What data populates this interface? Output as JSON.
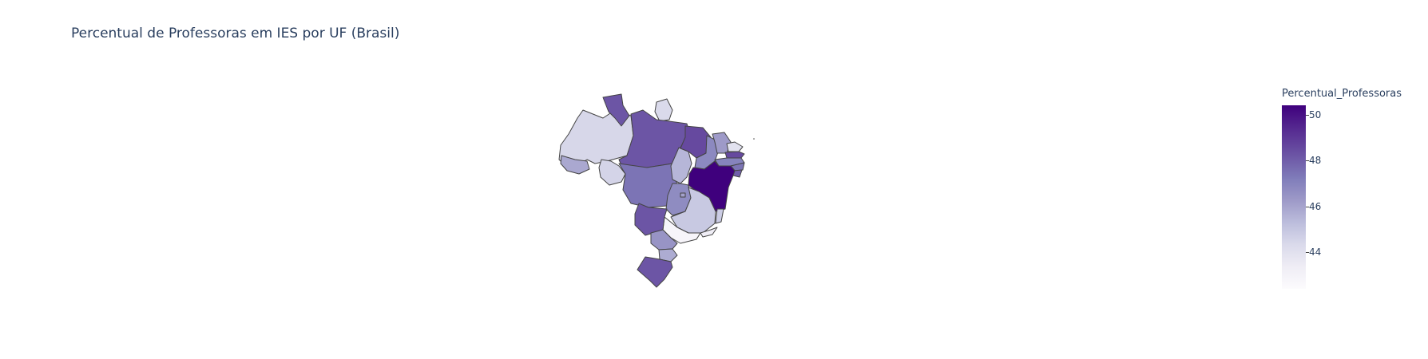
{
  "title": "Percentual de Professoras em IES por UF (Brasil)",
  "colorbar": {
    "title": "Percentual_Professoras",
    "ticks": [
      "50",
      "48",
      "46",
      "44"
    ],
    "tick_values": [
      50,
      48,
      46,
      44
    ],
    "min": 42.4,
    "max": 50.4,
    "colorscale": [
      "#fcfbfd",
      "#efedf5",
      "#dadaeb",
      "#bcbddc",
      "#9e9ac8",
      "#807dba",
      "#6a51a3",
      "#54278f",
      "#3f007d"
    ]
  },
  "chart_data": {
    "type": "choropleth",
    "scope": "Brasil",
    "value_label": "Percentual_Professoras",
    "regions": [
      {
        "uf": "AM",
        "value": 44.5
      },
      {
        "uf": "RR",
        "value": 48.3
      },
      {
        "uf": "AP",
        "value": 44.4
      },
      {
        "uf": "PA",
        "value": 48.3
      },
      {
        "uf": "AC",
        "value": 46.0
      },
      {
        "uf": "RO",
        "value": 44.6
      },
      {
        "uf": "MT",
        "value": 47.6
      },
      {
        "uf": "TO",
        "value": 45.6
      },
      {
        "uf": "MA",
        "value": 48.6
      },
      {
        "uf": "PI",
        "value": 47.0
      },
      {
        "uf": "CE",
        "value": 46.4
      },
      {
        "uf": "RN",
        "value": 44.0
      },
      {
        "uf": "PB",
        "value": 48.6
      },
      {
        "uf": "PE",
        "value": 47.2
      },
      {
        "uf": "AL",
        "value": 47.6
      },
      {
        "uf": "SE",
        "value": 48.1
      },
      {
        "uf": "BA",
        "value": 50.4
      },
      {
        "uf": "GO",
        "value": 46.9
      },
      {
        "uf": "DF",
        "value": 46.2
      },
      {
        "uf": "MG",
        "value": 45.0
      },
      {
        "uf": "ES",
        "value": 44.9
      },
      {
        "uf": "RJ",
        "value": 43.3
      },
      {
        "uf": "SP",
        "value": 42.8
      },
      {
        "uf": "MS",
        "value": 48.3
      },
      {
        "uf": "PR",
        "value": 46.6
      },
      {
        "uf": "SC",
        "value": 45.9
      },
      {
        "uf": "RS",
        "value": 48.3
      }
    ]
  }
}
